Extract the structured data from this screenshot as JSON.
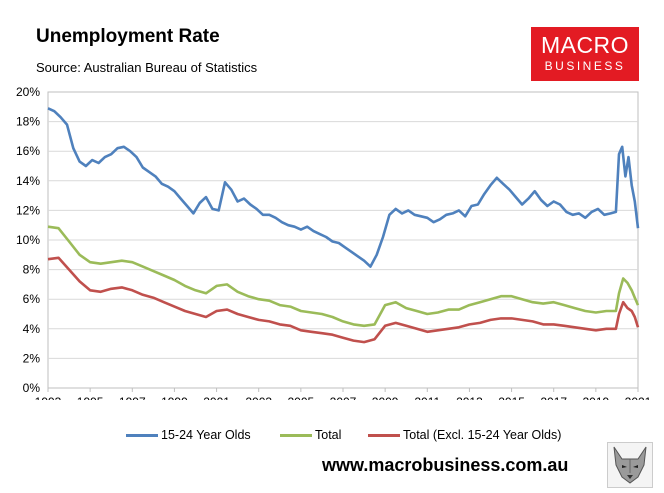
{
  "header": {
    "title": "Unemployment Rate",
    "subtitle": "Source: Australian Bureau of Statistics"
  },
  "logo": {
    "line1": "MACRO",
    "line2": "BUSINESS",
    "color": "#e31b23"
  },
  "footer": {
    "url": "www.macrobusiness.com.au"
  },
  "chart_data": {
    "type": "line",
    "xlabel": "",
    "ylabel": "",
    "xlim": [
      1993,
      2021
    ],
    "ylim": [
      0,
      20
    ],
    "x_ticks": [
      "1993",
      "1995",
      "1997",
      "1999",
      "2001",
      "2003",
      "2005",
      "2007",
      "2009",
      "2011",
      "2013",
      "2015",
      "2017",
      "2019",
      "2021"
    ],
    "y_ticks": [
      "0%",
      "2%",
      "4%",
      "6%",
      "8%",
      "10%",
      "12%",
      "14%",
      "16%",
      "18%",
      "20%"
    ],
    "grid": "horizontal",
    "legend_position": "bottom",
    "series": [
      {
        "name": "15-24 Year Olds",
        "color": "#4f81bd",
        "x": [
          1993.0,
          1993.3,
          1993.6,
          1993.9,
          1994.2,
          1994.5,
          1994.8,
          1995.1,
          1995.4,
          1995.7,
          1996.0,
          1996.3,
          1996.6,
          1996.9,
          1997.2,
          1997.5,
          1997.8,
          1998.1,
          1998.4,
          1998.7,
          1999.0,
          1999.3,
          1999.6,
          1999.9,
          2000.2,
          2000.5,
          2000.8,
          2001.1,
          2001.4,
          2001.7,
          2002.0,
          2002.3,
          2002.6,
          2002.9,
          2003.2,
          2003.5,
          2003.8,
          2004.1,
          2004.4,
          2004.7,
          2005.0,
          2005.3,
          2005.6,
          2005.9,
          2006.2,
          2006.5,
          2006.8,
          2007.1,
          2007.4,
          2007.7,
          2008.0,
          2008.3,
          2008.6,
          2008.9,
          2009.2,
          2009.5,
          2009.8,
          2010.1,
          2010.4,
          2010.7,
          2011.0,
          2011.3,
          2011.6,
          2011.9,
          2012.2,
          2012.5,
          2012.8,
          2013.1,
          2013.4,
          2013.7,
          2014.0,
          2014.3,
          2014.6,
          2014.9,
          2015.2,
          2015.5,
          2015.8,
          2016.1,
          2016.4,
          2016.7,
          2017.0,
          2017.3,
          2017.6,
          2017.9,
          2018.2,
          2018.5,
          2018.8,
          2019.1,
          2019.4,
          2019.7,
          2019.95,
          2020.1,
          2020.25,
          2020.4,
          2020.55,
          2020.7,
          2020.85,
          2021.0
        ],
        "values": [
          18.9,
          18.7,
          18.3,
          17.8,
          16.2,
          15.3,
          15.0,
          15.4,
          15.2,
          15.6,
          15.8,
          16.2,
          16.3,
          16.0,
          15.6,
          14.9,
          14.6,
          14.3,
          13.8,
          13.6,
          13.3,
          12.8,
          12.3,
          11.8,
          12.5,
          12.9,
          12.1,
          12.0,
          13.9,
          13.4,
          12.6,
          12.8,
          12.4,
          12.1,
          11.7,
          11.7,
          11.5,
          11.2,
          11.0,
          10.9,
          10.7,
          10.9,
          10.6,
          10.4,
          10.2,
          9.9,
          9.8,
          9.5,
          9.2,
          8.9,
          8.6,
          8.2,
          9.0,
          10.2,
          11.7,
          12.1,
          11.8,
          12.0,
          11.7,
          11.6,
          11.5,
          11.2,
          11.4,
          11.7,
          11.8,
          12.0,
          11.6,
          12.3,
          12.4,
          13.1,
          13.7,
          14.2,
          13.8,
          13.4,
          12.9,
          12.4,
          12.8,
          13.3,
          12.7,
          12.3,
          12.6,
          12.4,
          11.9,
          11.7,
          11.8,
          11.5,
          11.9,
          12.1,
          11.7,
          11.8,
          11.9,
          15.8,
          16.3,
          14.3,
          15.6,
          13.7,
          12.6,
          10.8
        ]
      },
      {
        "name": "Total",
        "color": "#9bbb59",
        "x": [
          1993.0,
          1993.5,
          1994.0,
          1994.5,
          1995.0,
          1995.5,
          1996.0,
          1996.5,
          1997.0,
          1997.5,
          1998.0,
          1998.5,
          1999.0,
          1999.5,
          2000.0,
          2000.5,
          2001.0,
          2001.5,
          2002.0,
          2002.5,
          2003.0,
          2003.5,
          2004.0,
          2004.5,
          2005.0,
          2005.5,
          2006.0,
          2006.5,
          2007.0,
          2007.5,
          2008.0,
          2008.5,
          2009.0,
          2009.5,
          2010.0,
          2010.5,
          2011.0,
          2011.5,
          2012.0,
          2012.5,
          2013.0,
          2013.5,
          2014.0,
          2014.5,
          2015.0,
          2015.5,
          2016.0,
          2016.5,
          2017.0,
          2017.5,
          2018.0,
          2018.5,
          2019.0,
          2019.5,
          2019.95,
          2020.1,
          2020.3,
          2020.5,
          2020.7,
          2020.85,
          2021.0
        ],
        "values": [
          10.9,
          10.8,
          9.9,
          9.0,
          8.5,
          8.4,
          8.5,
          8.6,
          8.5,
          8.2,
          7.9,
          7.6,
          7.3,
          6.9,
          6.6,
          6.4,
          6.9,
          7.0,
          6.5,
          6.2,
          6.0,
          5.9,
          5.6,
          5.5,
          5.2,
          5.1,
          5.0,
          4.8,
          4.5,
          4.3,
          4.2,
          4.3,
          5.6,
          5.8,
          5.4,
          5.2,
          5.0,
          5.1,
          5.3,
          5.3,
          5.6,
          5.8,
          6.0,
          6.2,
          6.2,
          6.0,
          5.8,
          5.7,
          5.8,
          5.6,
          5.4,
          5.2,
          5.1,
          5.2,
          5.2,
          6.4,
          7.4,
          7.1,
          6.6,
          6.1,
          5.6
        ]
      },
      {
        "name": "Total (Excl. 15-24 Year Olds)",
        "color": "#c0504d",
        "x": [
          1993.0,
          1993.5,
          1994.0,
          1994.5,
          1995.0,
          1995.5,
          1996.0,
          1996.5,
          1997.0,
          1997.5,
          1998.0,
          1998.5,
          1999.0,
          1999.5,
          2000.0,
          2000.5,
          2001.0,
          2001.5,
          2002.0,
          2002.5,
          2003.0,
          2003.5,
          2004.0,
          2004.5,
          2005.0,
          2005.5,
          2006.0,
          2006.5,
          2007.0,
          2007.5,
          2008.0,
          2008.5,
          2009.0,
          2009.5,
          2010.0,
          2010.5,
          2011.0,
          2011.5,
          2012.0,
          2012.5,
          2013.0,
          2013.5,
          2014.0,
          2014.5,
          2015.0,
          2015.5,
          2016.0,
          2016.5,
          2017.0,
          2017.5,
          2018.0,
          2018.5,
          2019.0,
          2019.5,
          2019.95,
          2020.1,
          2020.3,
          2020.5,
          2020.7,
          2020.85,
          2021.0
        ],
        "values": [
          8.7,
          8.8,
          8.0,
          7.2,
          6.6,
          6.5,
          6.7,
          6.8,
          6.6,
          6.3,
          6.1,
          5.8,
          5.5,
          5.2,
          5.0,
          4.8,
          5.2,
          5.3,
          5.0,
          4.8,
          4.6,
          4.5,
          4.3,
          4.2,
          3.9,
          3.8,
          3.7,
          3.6,
          3.4,
          3.2,
          3.1,
          3.3,
          4.2,
          4.4,
          4.2,
          4.0,
          3.8,
          3.9,
          4.0,
          4.1,
          4.3,
          4.4,
          4.6,
          4.7,
          4.7,
          4.6,
          4.5,
          4.3,
          4.3,
          4.2,
          4.1,
          4.0,
          3.9,
          4.0,
          4.0,
          5.0,
          5.8,
          5.4,
          5.2,
          4.8,
          4.1
        ]
      }
    ]
  }
}
